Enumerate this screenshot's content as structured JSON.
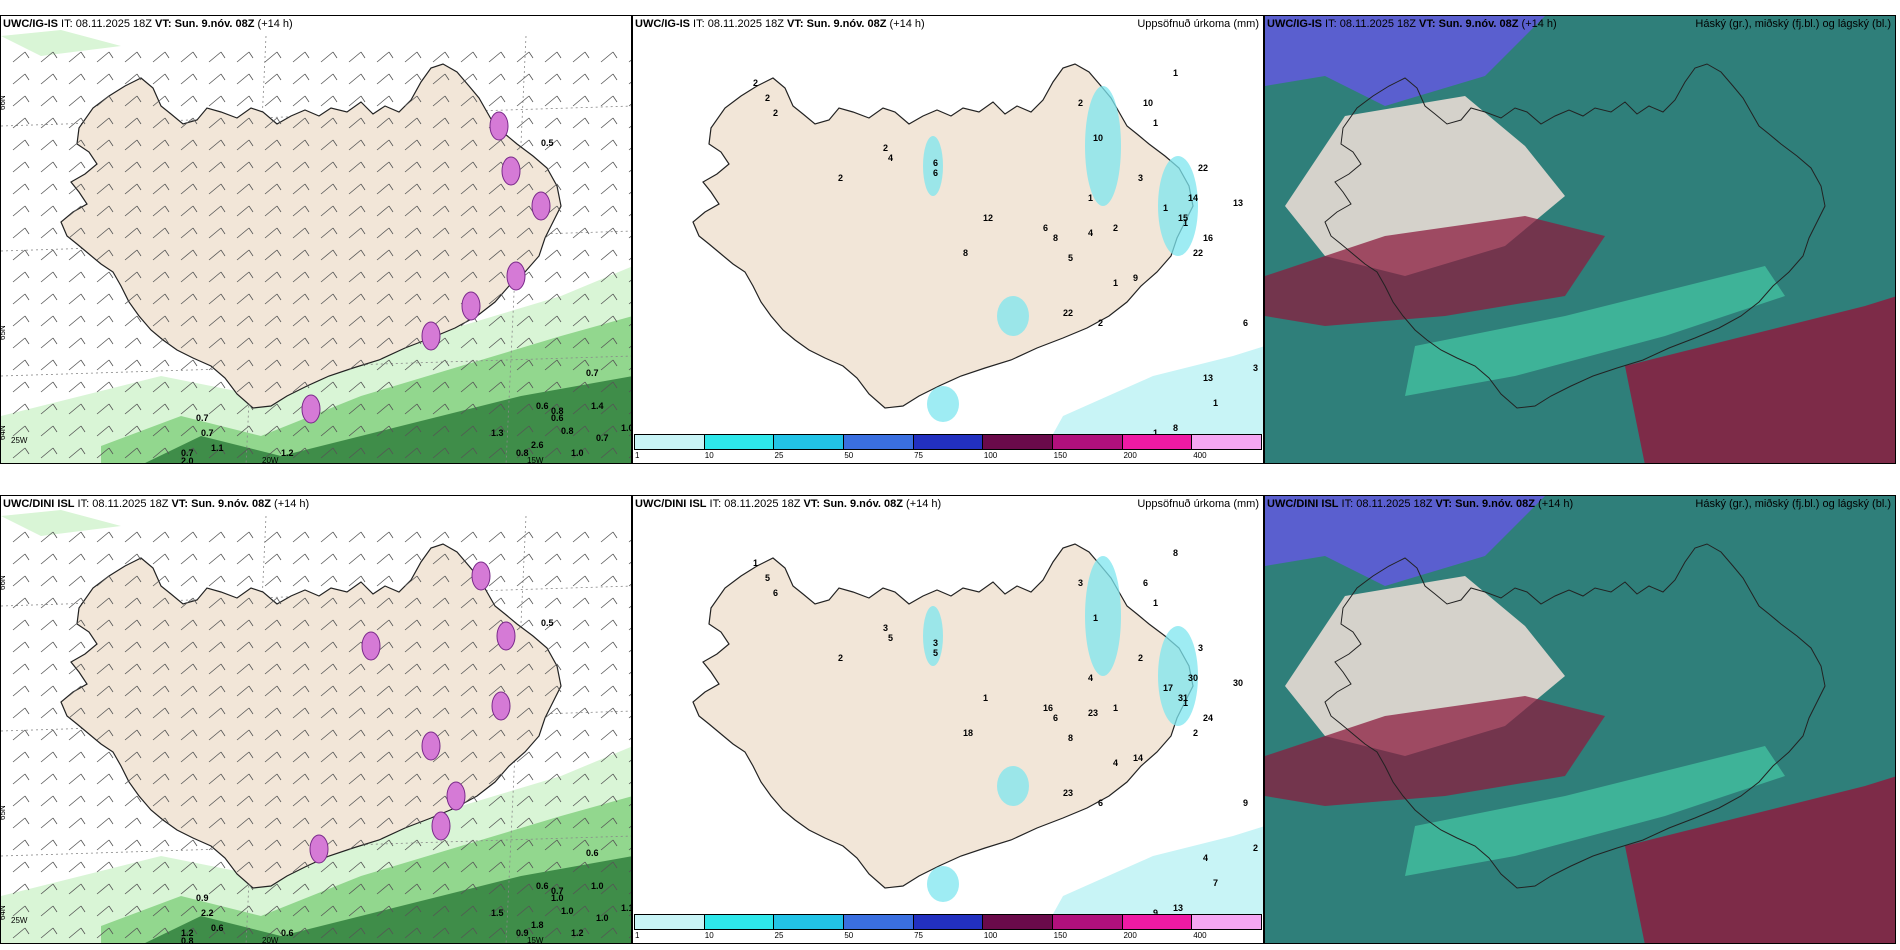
{
  "init_time": "08.11.2025 18Z",
  "valid_time": "Sun. 9.nóv. 08Z",
  "lead": "(+14 h)",
  "colors": {
    "land": "#f2e6d8",
    "precip_light": "#c8f4f6",
    "precip_mid": "#7de6ef",
    "wind_green_light": "#d9f5d6",
    "wind_green": "#7fd07c",
    "wind_green_dark": "#1c6e2c",
    "snow_purple": "#d57ad6",
    "cloud_high": "#5a5fcf",
    "cloud_mid": "#2f7f7a",
    "cloud_low": "#8b1c3f"
  },
  "colorbar": {
    "labels": [
      "1",
      "10",
      "25",
      "50",
      "75",
      "100",
      "150",
      "200",
      "400"
    ],
    "colors": [
      "#c8f4f6",
      "#2ee7ea",
      "#22c3e6",
      "#3a6fe0",
      "#2230c0",
      "#6a0a4a",
      "#b0107c",
      "#ee1aa4",
      "#f5a6f2"
    ]
  },
  "rows": [
    {
      "model": "UWC/IG-IS",
      "precip_title": "Uppsöfnuð úrkoma (mm)",
      "cloud_title": "Háský (gr.), miðský (fj.bl.) og lágský (bl.)",
      "axis_labels": [
        "66N",
        "65N",
        "64N",
        "25W",
        "20W",
        "15W"
      ],
      "wind_values": [
        "0.5",
        "0.7",
        "0.7",
        "0.6",
        "0.8",
        "1.4",
        "0.7",
        "0.7",
        "0.8",
        "1.0",
        "0.6",
        "2.0",
        "1.2",
        "2.6",
        "0.7",
        "1.1",
        "1.3",
        "0.8",
        "1.0"
      ],
      "precip_values": [
        "2",
        "2",
        "2",
        "4",
        "2",
        "6",
        "2",
        "6",
        "1",
        "1",
        "2",
        "8",
        "10",
        "22",
        "3",
        "1",
        "15",
        "22",
        "16",
        "13",
        "14",
        "6",
        "4",
        "5",
        "9",
        "22",
        "10",
        "1",
        "1",
        "2",
        "1",
        "2",
        "1",
        "1",
        "13",
        "3",
        "6",
        "12",
        "8",
        "8"
      ]
    },
    {
      "model": "UWC/DINI ISL",
      "precip_title": "Uppsöfnuð úrkoma (mm)",
      "cloud_title": "Háský (gr.), miðský (fj.bl.) og lágský (bl.)",
      "axis_labels": [
        "66N",
        "65N",
        "64N",
        "25W",
        "20W",
        "15W"
      ],
      "wind_values": [
        "0.5",
        "0.6",
        "0.9",
        "0.6",
        "0.7",
        "1.0",
        "1.0",
        "1.2",
        "1.0",
        "1.1",
        "1.0",
        "0.8",
        "0.6",
        "1.8",
        "2.2",
        "0.6",
        "1.5",
        "0.9",
        "1.2"
      ],
      "precip_values": [
        "1",
        "5",
        "6",
        "5",
        "2",
        "3",
        "3",
        "5",
        "4",
        "1",
        "1",
        "6",
        "1",
        "3",
        "2",
        "17",
        "31",
        "2",
        "24",
        "30",
        "30",
        "16",
        "23",
        "8",
        "14",
        "23",
        "6",
        "8",
        "1",
        "3",
        "4",
        "6",
        "7",
        "9",
        "4",
        "2",
        "9",
        "1",
        "18",
        "13"
      ]
    }
  ]
}
